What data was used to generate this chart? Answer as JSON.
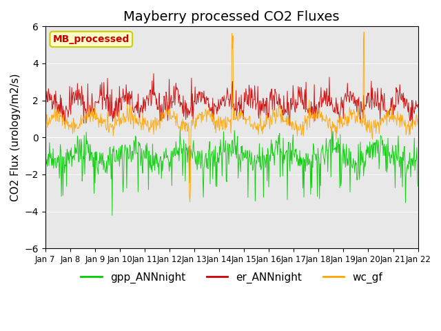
{
  "title": "Mayberry processed CO2 Fluxes",
  "ylabel": "CO2 Flux (urology/m2/s)",
  "ylim": [
    -6,
    6
  ],
  "yticks": [
    -6,
    -4,
    -2,
    0,
    2,
    4,
    6
  ],
  "xlabels": [
    "Jan 7",
    "Jan 8",
    "Jan 9",
    "Jan 10",
    "Jan 11",
    "Jan 12",
    "Jan 13",
    "Jan 14",
    "Jan 15",
    "Jan 16",
    "Jan 17",
    "Jan 18",
    "Jan 19",
    "Jan 20",
    "Jan 21",
    "Jan 22"
  ],
  "n_days": 15,
  "points_per_day": 48,
  "colors": {
    "gpp": "#00cc00",
    "er": "#cc0000",
    "wc": "#ffa500"
  },
  "legend_labels": [
    "gpp_ANNnight",
    "er_ANNnight",
    "wc_gf"
  ],
  "annotation_text": "MB_processed",
  "annotation_color": "#cc0000",
  "annotation_bg": "#ffffcc",
  "annotation_border": "#cccc00",
  "background_color": "#e8e8e8",
  "title_fontsize": 14,
  "axis_fontsize": 11,
  "legend_fontsize": 11,
  "seed": 42
}
